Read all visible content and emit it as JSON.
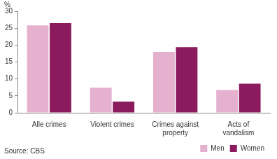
{
  "chart_data": {
    "type": "bar",
    "categories": [
      "Alle crimes",
      "Violent crimes",
      "Crimes against property",
      "Acts of vandalism"
    ],
    "series": [
      {
        "name": "Men",
        "color": "#e6b0cf",
        "values": [
          25.8,
          7.4,
          18.0,
          6.7
        ]
      },
      {
        "name": "Women",
        "color": "#8b1a5e",
        "values": [
          26.5,
          3.3,
          19.4,
          8.6
        ]
      }
    ],
    "y_label": "%",
    "annotation": "Source: CBS",
    "ylim": [
      0,
      30
    ],
    "yticks": [
      0,
      5,
      10,
      15,
      20,
      25,
      30
    ],
    "grid": false,
    "legend": "bottom"
  }
}
